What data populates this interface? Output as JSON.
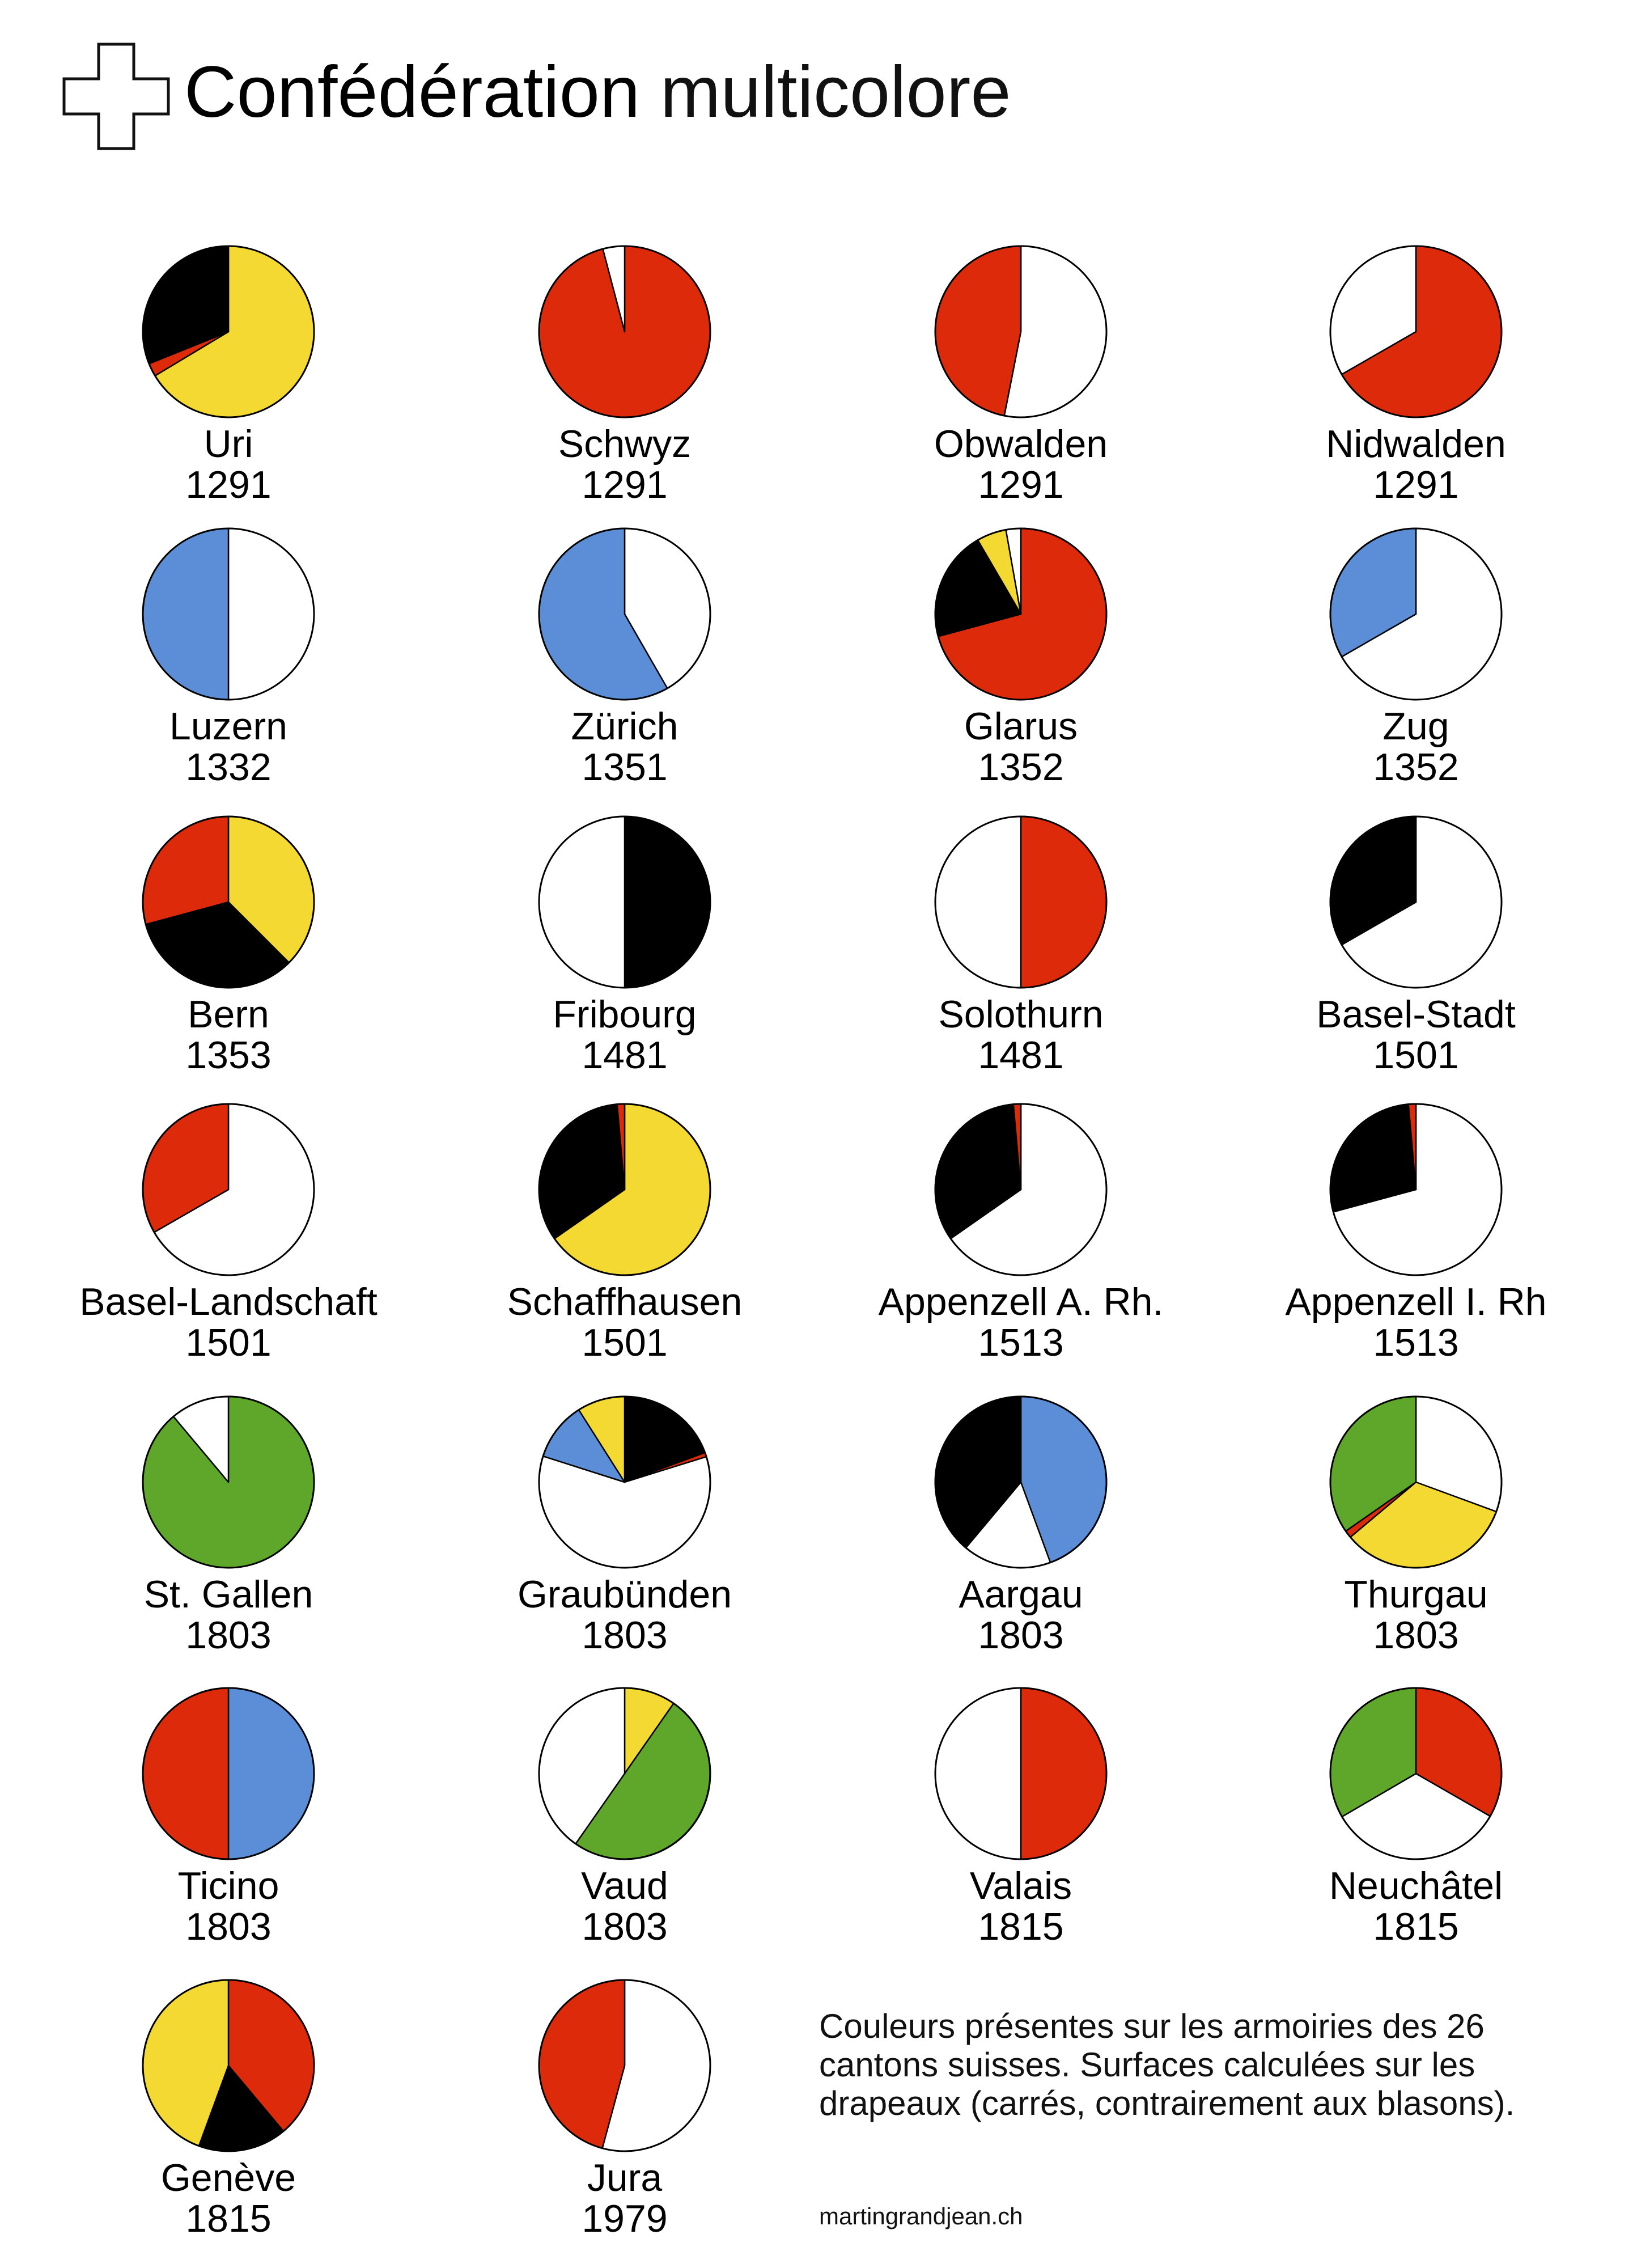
{
  "title": {
    "bold": "Confédération",
    "light": "multicolore"
  },
  "note": "Couleurs présentes sur les armoiries des 26 cantons suisses. Surfaces calculées sur les drapeaux (carrés, contrairement aux blasons).",
  "credit": "martingrandjean.ch",
  "colors": {
    "red": "#dc2a0a",
    "white": "#ffffff",
    "black": "#000000",
    "yellow": "#f5d933",
    "blue": "#5b8ed6",
    "green": "#5ea72b"
  },
  "chart_data": {
    "type": "pie",
    "cantons": [
      {
        "name": "Uri",
        "year": "1291",
        "slices": [
          {
            "color": "yellow",
            "value": 66.4
          },
          {
            "color": "red",
            "value": 2.5
          },
          {
            "color": "black",
            "value": 31.1
          }
        ]
      },
      {
        "name": "Schwyz",
        "year": "1291",
        "slices": [
          {
            "color": "red",
            "value": 95.9
          },
          {
            "color": "white",
            "value": 4.1
          }
        ]
      },
      {
        "name": "Obwalden",
        "year": "1291",
        "slices": [
          {
            "color": "white",
            "value": 53.1
          },
          {
            "color": "red",
            "value": 46.9
          }
        ]
      },
      {
        "name": "Nidwalden",
        "year": "1291",
        "slices": [
          {
            "color": "red",
            "value": 66.7
          },
          {
            "color": "white",
            "value": 33.3
          }
        ]
      },
      {
        "name": "Luzern",
        "year": "1332",
        "slices": [
          {
            "color": "white",
            "value": 50
          },
          {
            "color": "blue",
            "value": 50
          }
        ]
      },
      {
        "name": "Zürich",
        "year": "1351",
        "slices": [
          {
            "color": "white",
            "value": 41.7
          },
          {
            "color": "blue",
            "value": 58.3
          }
        ]
      },
      {
        "name": "Glarus",
        "year": "1352",
        "slices": [
          {
            "color": "red",
            "value": 70.8
          },
          {
            "color": "black",
            "value": 20.8
          },
          {
            "color": "yellow",
            "value": 5.6
          },
          {
            "color": "white",
            "value": 2.8
          }
        ]
      },
      {
        "name": "Zug",
        "year": "1352",
        "slices": [
          {
            "color": "white",
            "value": 66.7
          },
          {
            "color": "blue",
            "value": 33.3
          }
        ]
      },
      {
        "name": "Bern",
        "year": "1353",
        "slices": [
          {
            "color": "yellow",
            "value": 37.5
          },
          {
            "color": "black",
            "value": 33.3
          },
          {
            "color": "red",
            "value": 29.2
          }
        ]
      },
      {
        "name": "Fribourg",
        "year": "1481",
        "slices": [
          {
            "color": "black",
            "value": 50
          },
          {
            "color": "white",
            "value": 50
          }
        ]
      },
      {
        "name": "Solothurn",
        "year": "1481",
        "slices": [
          {
            "color": "red",
            "value": 50
          },
          {
            "color": "white",
            "value": 50
          }
        ]
      },
      {
        "name": "Basel-Stadt",
        "year": "1501",
        "slices": [
          {
            "color": "white",
            "value": 66.7
          },
          {
            "color": "black",
            "value": 33.3
          }
        ]
      },
      {
        "name": "Basel-Landschaft",
        "year": "1501",
        "slices": [
          {
            "color": "white",
            "value": 66.7
          },
          {
            "color": "red",
            "value": 33.3
          }
        ]
      },
      {
        "name": "Schaffhausen",
        "year": "1501",
        "slices": [
          {
            "color": "yellow",
            "value": 65.3
          },
          {
            "color": "black",
            "value": 33.3
          },
          {
            "color": "red",
            "value": 1.4
          }
        ]
      },
      {
        "name": "Appenzell A. Rh.",
        "year": "1513",
        "slices": [
          {
            "color": "white",
            "value": 65.3
          },
          {
            "color": "black",
            "value": 33.3
          },
          {
            "color": "red",
            "value": 1.4
          }
        ]
      },
      {
        "name": "Appenzell I. Rh",
        "year": "1513",
        "slices": [
          {
            "color": "white",
            "value": 70.8
          },
          {
            "color": "black",
            "value": 27.8
          },
          {
            "color": "red",
            "value": 1.4
          }
        ]
      },
      {
        "name": "St. Gallen",
        "year": "1803",
        "slices": [
          {
            "color": "green",
            "value": 88.9
          },
          {
            "color": "white",
            "value": 11.1
          }
        ]
      },
      {
        "name": "Graubünden",
        "year": "1803",
        "slices": [
          {
            "color": "black",
            "value": 19.4
          },
          {
            "color": "red",
            "value": 0.8
          },
          {
            "color": "white",
            "value": 59.7
          },
          {
            "color": "blue",
            "value": 11.1
          },
          {
            "color": "yellow",
            "value": 9
          }
        ]
      },
      {
        "name": "Aargau",
        "year": "1803",
        "slices": [
          {
            "color": "blue",
            "value": 44.4
          },
          {
            "color": "white",
            "value": 16.7
          },
          {
            "color": "black",
            "value": 38.9
          }
        ]
      },
      {
        "name": "Thurgau",
        "year": "1803",
        "slices": [
          {
            "color": "white",
            "value": 30.6
          },
          {
            "color": "yellow",
            "value": 33.3
          },
          {
            "color": "red",
            "value": 1.4
          },
          {
            "color": "green",
            "value": 34.7
          }
        ]
      },
      {
        "name": "Ticino",
        "year": "1803",
        "slices": [
          {
            "color": "blue",
            "value": 50
          },
          {
            "color": "red",
            "value": 50
          }
        ]
      },
      {
        "name": "Vaud",
        "year": "1803",
        "slices": [
          {
            "color": "yellow",
            "value": 9.7
          },
          {
            "color": "green",
            "value": 50
          },
          {
            "color": "white",
            "value": 40.3
          }
        ]
      },
      {
        "name": "Valais",
        "year": "1815",
        "slices": [
          {
            "color": "red",
            "value": 50
          },
          {
            "color": "white",
            "value": 50
          }
        ]
      },
      {
        "name": "Neuchâtel",
        "year": "1815",
        "slices": [
          {
            "color": "red",
            "value": 33.3
          },
          {
            "color": "white",
            "value": 33.3
          },
          {
            "color": "green",
            "value": 33.4
          }
        ]
      },
      {
        "name": "Genève",
        "year": "1815",
        "slices": [
          {
            "color": "red",
            "value": 38.9
          },
          {
            "color": "black",
            "value": 16.7
          },
          {
            "color": "yellow",
            "value": 44.4
          }
        ]
      },
      {
        "name": "Jura",
        "year": "1979",
        "slices": [
          {
            "color": "white",
            "value": 54.2
          },
          {
            "color": "red",
            "value": 45.8
          }
        ]
      }
    ]
  }
}
